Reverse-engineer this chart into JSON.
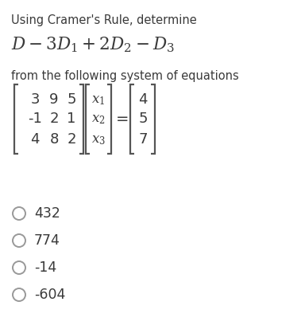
{
  "line1": "Using Cramer's Rule, determine",
  "formula_mathtext": "$D-3D_1+2D_2-D_3$",
  "line3": "from the following system of equations",
  "matrix_A": [
    [
      "3",
      "9",
      "5"
    ],
    [
      "-1",
      "2",
      "1"
    ],
    [
      "4",
      "8",
      "2"
    ]
  ],
  "x_labels": [
    "$x_1$",
    "$x_2$",
    "$x_3$"
  ],
  "matrix_b": [
    "4",
    "5",
    "7"
  ],
  "choices": [
    "432",
    "774",
    "-14",
    "-604"
  ],
  "bg_color": "#ffffff",
  "text_color": "#3a3a3a",
  "formula_color": "#3a3a3a",
  "bracket_color": "#555555"
}
